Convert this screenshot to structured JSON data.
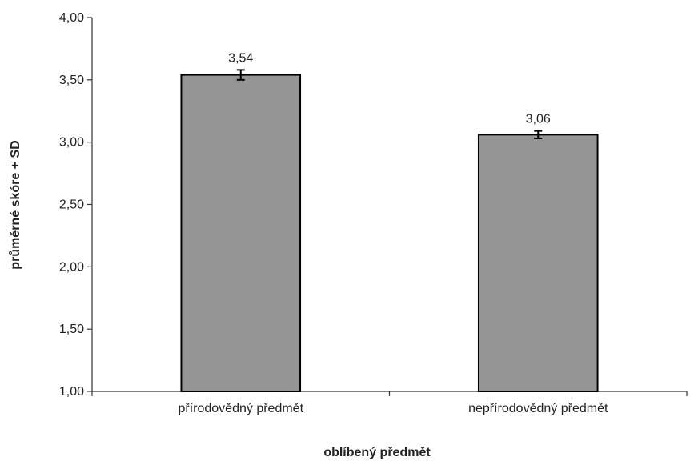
{
  "chart_data": {
    "type": "bar",
    "categories": [
      "přírodovědný předmět",
      "nepřírodovědný předmět"
    ],
    "values": [
      3.54,
      3.06
    ],
    "error": [
      0.04,
      0.03
    ],
    "value_labels": [
      "3,54",
      "3,06"
    ],
    "xlabel": "oblíbený předmět",
    "ylabel": "průměrné skóre + SD",
    "ylim": [
      1.0,
      4.0
    ],
    "yticks": [
      1.0,
      1.5,
      2.0,
      2.5,
      3.0,
      3.5,
      4.0
    ],
    "ytick_labels": [
      "1,00",
      "1,50",
      "2,00",
      "2,50",
      "3,00",
      "3,50",
      "4,00"
    ],
    "grid": false,
    "legend": "none",
    "colors": {
      "bar_fill": "#959595",
      "bar_stroke": "#000000",
      "axis": "#333333"
    }
  }
}
